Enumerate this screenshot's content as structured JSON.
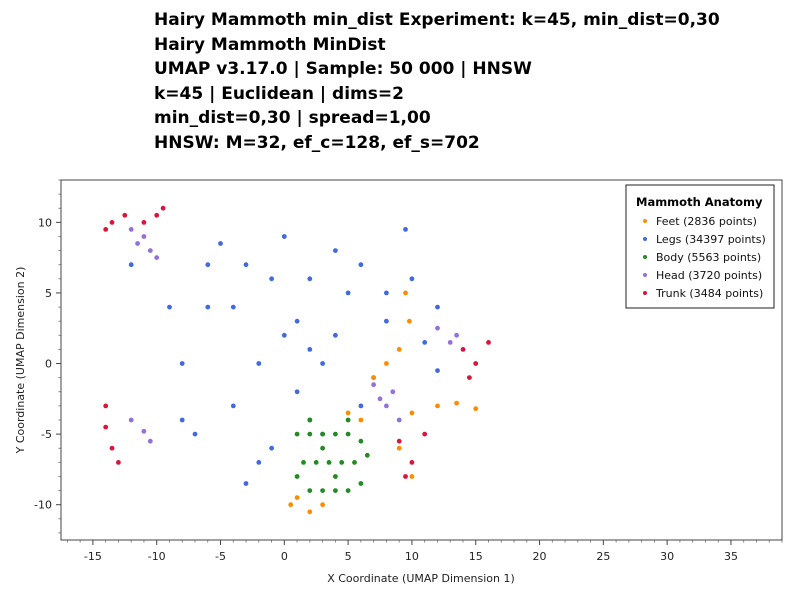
{
  "chart_data": {
    "type": "scatter",
    "title_lines": [
      "Hairy Mammoth min_dist Experiment: k=45, min_dist=0,30",
      "Hairy Mammoth MinDist",
      "UMAP v3.17.0 | Sample: 50 000 | HNSW",
      "k=45 | Euclidean | dims=2",
      "min_dist=0,30 | spread=1,00",
      "HNSW: M=32, ef_c=128, ef_s=702"
    ],
    "xlabel": "X Coordinate (UMAP Dimension 1)",
    "ylabel": "Y Coordinate (UMAP Dimension 2)",
    "xlim": [
      -17.5,
      39
    ],
    "ylim": [
      -12.5,
      13
    ],
    "x_ticks": [
      -15,
      -10,
      -5,
      0,
      5,
      10,
      15,
      20,
      25,
      30,
      35
    ],
    "y_ticks": [
      10,
      5,
      0,
      -5,
      -10
    ],
    "grid": false,
    "legend": {
      "title": "Mammoth Anatomy",
      "placement": "top-right",
      "entries": [
        "Feet (2836 points)",
        "Legs (34397 points)",
        "Body (5563 points)",
        "Head (3720 points)",
        "Trunk (3484 points)"
      ]
    },
    "series": [
      {
        "name": "Legs",
        "color": "#4169e1",
        "x": [
          -3,
          -6,
          -8,
          -4,
          0,
          2,
          4,
          6,
          8,
          9.5,
          12,
          12,
          -1,
          1,
          -9,
          -12,
          -7,
          -5,
          -2,
          3,
          5,
          7,
          11,
          -3,
          0,
          2,
          -4,
          -6,
          4,
          10,
          3,
          -2,
          6,
          8,
          -8,
          1,
          -1,
          2
        ],
        "y": [
          7,
          4,
          0,
          -3,
          2,
          6,
          8,
          7,
          3,
          9.5,
          4,
          -0.5,
          -6,
          -2,
          4,
          7,
          -5,
          8.5,
          0,
          0,
          5,
          -1,
          1.5,
          -8.5,
          9,
          -4,
          4,
          7,
          2,
          6,
          -5,
          -7,
          -3,
          5,
          -4,
          3,
          6,
          1
        ]
      },
      {
        "name": "Body",
        "color": "#228b22",
        "x": [
          1,
          2,
          3,
          4,
          5,
          6,
          1.5,
          2.5,
          3.5,
          4.5,
          5.5,
          2,
          3,
          4,
          5,
          6,
          1,
          3,
          4,
          2,
          5,
          6.5
        ],
        "y": [
          -5,
          -5,
          -5,
          -5,
          -5,
          -5.5,
          -7,
          -7,
          -7,
          -7,
          -7,
          -9,
          -9,
          -9,
          -9,
          -8.5,
          -8,
          -6,
          -8,
          -4,
          -4,
          -6.5
        ]
      },
      {
        "name": "Feet",
        "color": "#ff8c00",
        "x": [
          1,
          2,
          3,
          0.5,
          9.5,
          9.8,
          9,
          8,
          6,
          5,
          10,
          12,
          13.5,
          15,
          9,
          10,
          7
        ],
        "y": [
          -9.5,
          -10.5,
          -10,
          -10,
          5,
          3,
          1,
          0,
          -4,
          -3.5,
          -3.5,
          -3,
          -2.8,
          -3.2,
          -6,
          -8,
          -1
        ]
      },
      {
        "name": "Head",
        "color": "#9370db",
        "x": [
          -11.5,
          -11,
          -10.5,
          -12,
          -10,
          7,
          8,
          9,
          7.5,
          12,
          13,
          13.5,
          -11,
          -10.5,
          -12,
          8.5
        ],
        "y": [
          8.5,
          9,
          8,
          9.5,
          7.5,
          -1.5,
          -3,
          -4,
          -2.5,
          2.5,
          1.5,
          2,
          -4.8,
          -5.5,
          -4,
          -2
        ]
      },
      {
        "name": "Trunk",
        "color": "#dc143c",
        "x": [
          -13.5,
          -12.5,
          -11,
          -10,
          -9.5,
          -14,
          14,
          15,
          16,
          14.5,
          9,
          10,
          11,
          9.5,
          -14,
          -13.5,
          -14,
          -13
        ],
        "y": [
          10,
          10.5,
          10,
          10.5,
          11,
          9.5,
          1,
          0,
          1.5,
          -1,
          -5.5,
          -7,
          -5,
          -8,
          -3,
          -6,
          -4.5,
          -7
        ]
      }
    ]
  }
}
